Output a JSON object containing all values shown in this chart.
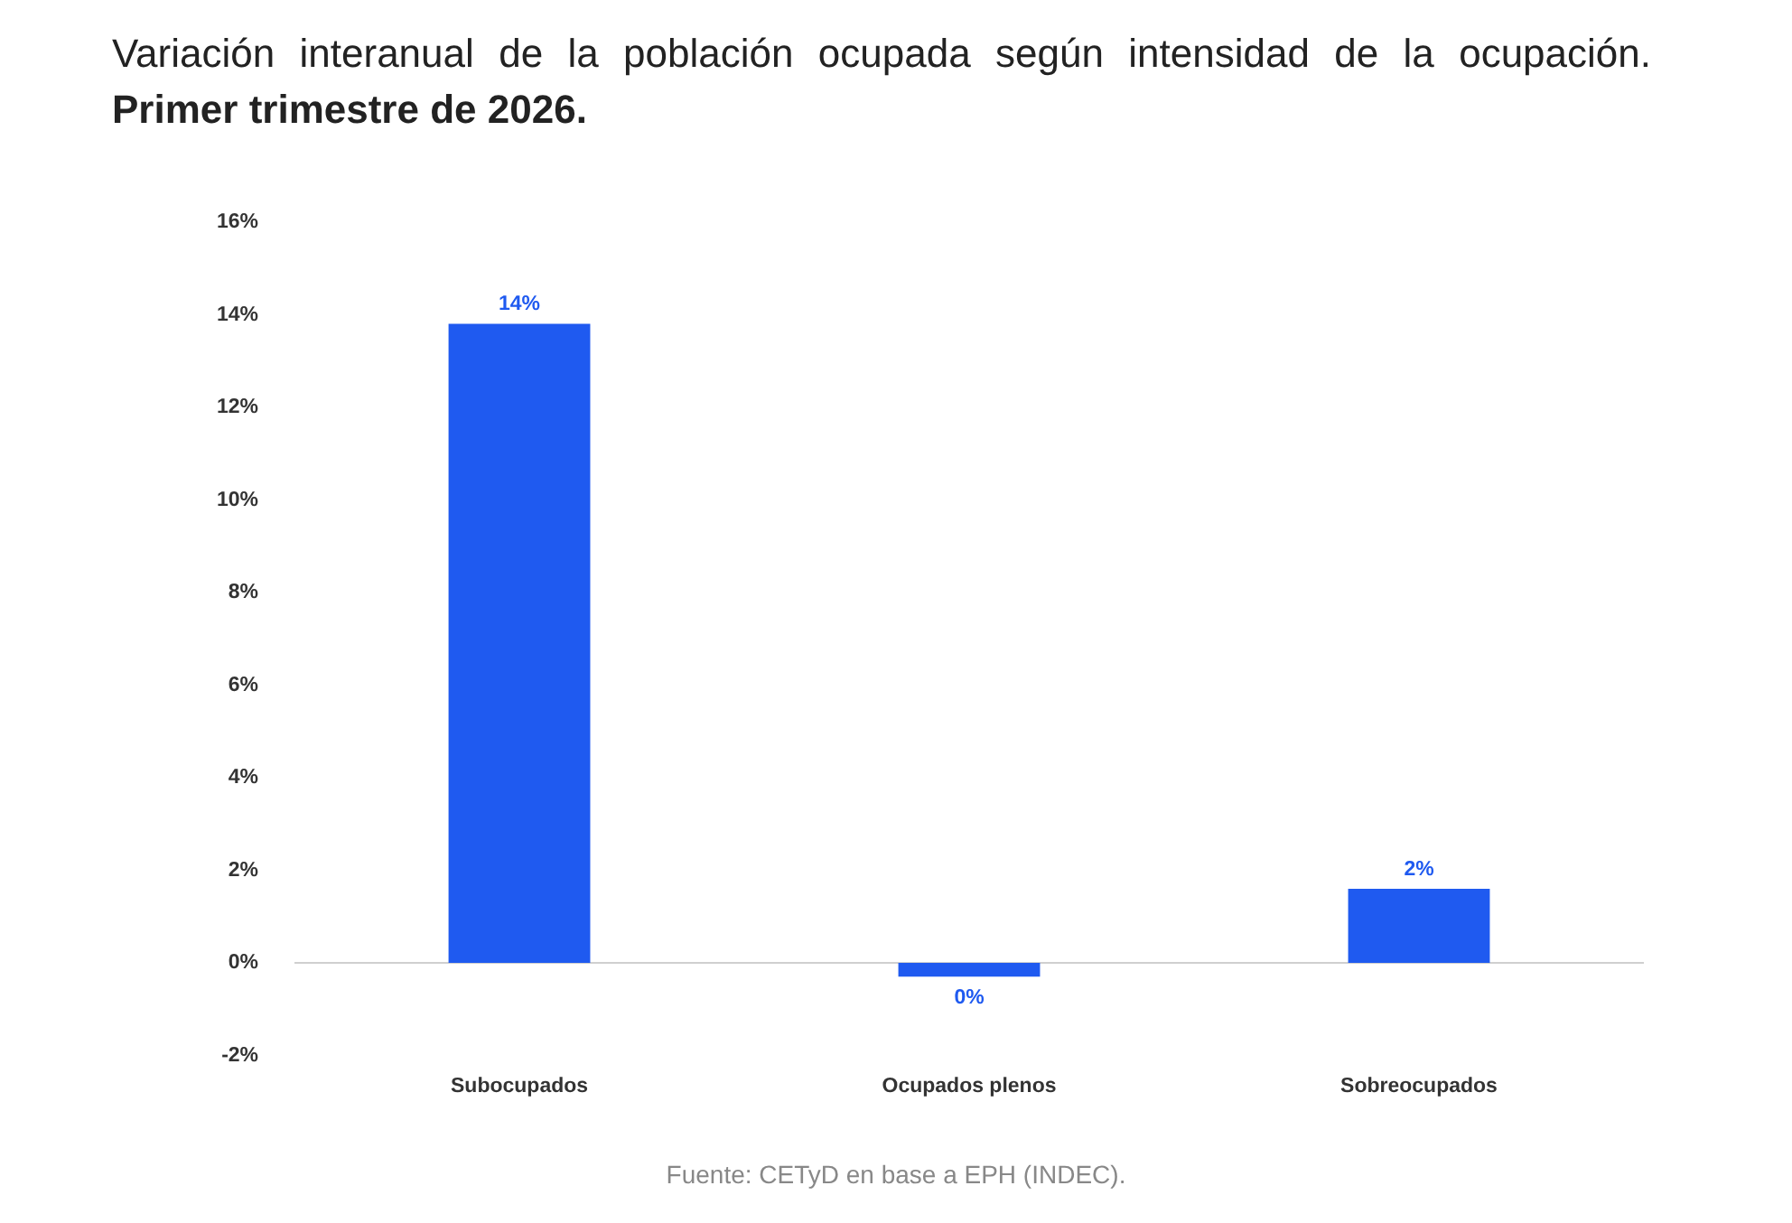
{
  "chart_data": {
    "type": "bar",
    "title": "Variación interanual de la población ocupada según intensidad de la ocupación.",
    "subtitle": "Primer trimestre de 2026.",
    "categories": [
      "Subocupados",
      "Ocupados plenos",
      "Sobreocupados"
    ],
    "values": [
      13.8,
      -0.3,
      1.6
    ],
    "value_labels": [
      "14%",
      "0%",
      "2%"
    ],
    "color": "#1f5af0",
    "ylim": [
      -2,
      16
    ],
    "yticks": [
      {
        "value": -2,
        "label": "-2%"
      },
      {
        "value": 0,
        "label": "0%"
      },
      {
        "value": 2,
        "label": "2%"
      },
      {
        "value": 4,
        "label": "4%"
      },
      {
        "value": 6,
        "label": "6%"
      },
      {
        "value": 8,
        "label": "8%"
      },
      {
        "value": 10,
        "label": "10%"
      },
      {
        "value": 12,
        "label": "12%"
      },
      {
        "value": 14,
        "label": "14%"
      },
      {
        "value": 16,
        "label": "16%"
      }
    ],
    "grid": false,
    "legend": false,
    "ref_lines": [
      {
        "axis": "y",
        "value": 0,
        "color": "#cfcfcf"
      }
    ],
    "annotations": [
      "Fuente: CETyD en base a EPH (INDEC)."
    ]
  }
}
